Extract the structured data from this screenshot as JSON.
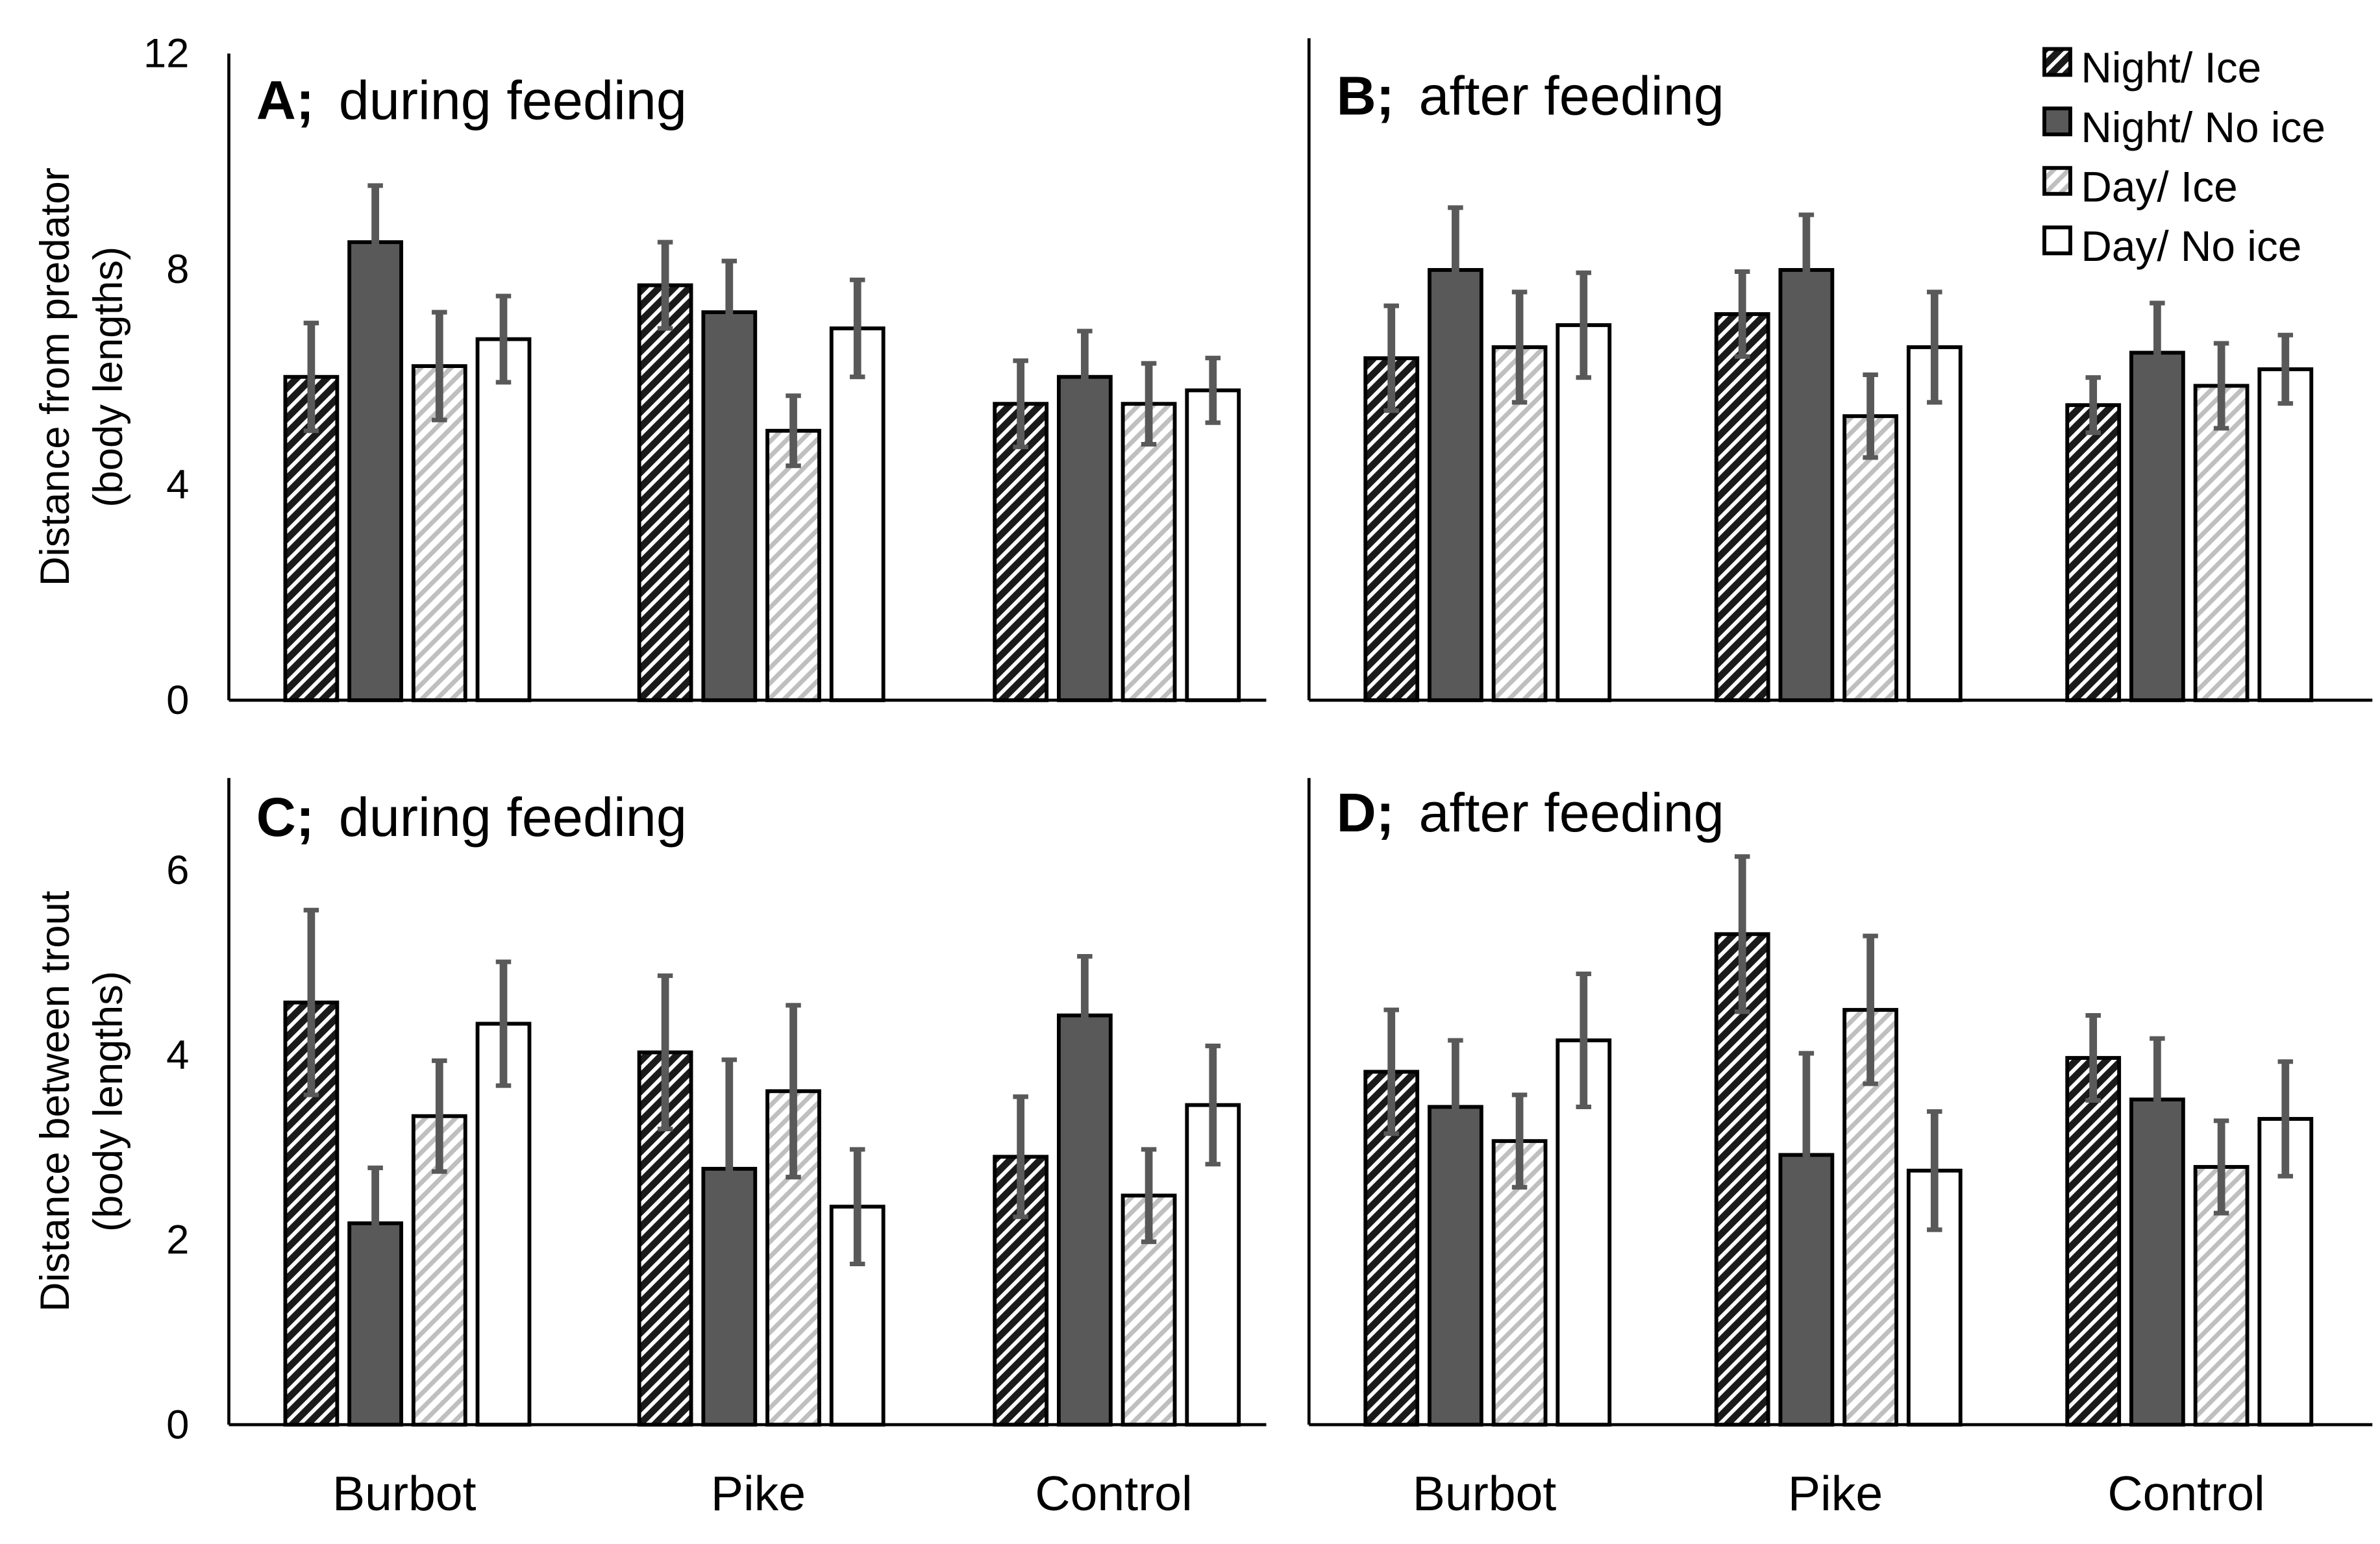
{
  "legend": [
    "Night/ Ice",
    "Night/ No ice",
    "Day/ Ice",
    "Day/ No ice"
  ],
  "colors": {
    "night_no_ice": "#595959",
    "night_ice_bg": "#3a3a3a",
    "day_ice_stripe": "#bfbfbf",
    "error_bar": "#595959",
    "outline": "#000000"
  },
  "chart_data": [
    {
      "type": "bar",
      "panel": "A",
      "title_bold": "A;",
      "title": "during feeding",
      "ylabel": [
        "Distance from predator",
        "(body lengths)"
      ],
      "ylim": [
        0,
        12
      ],
      "yticks": [
        0,
        4,
        8,
        12
      ],
      "categories": [
        "Burbot",
        "Pike",
        "Control"
      ],
      "show_xlabels": false,
      "series": [
        {
          "name": "Night/ Ice",
          "values": [
            6.0,
            7.7,
            5.5
          ],
          "errors": [
            1.0,
            0.8,
            0.8
          ]
        },
        {
          "name": "Night/ No ice",
          "values": [
            8.5,
            7.2,
            6.0
          ],
          "errors": [
            1.05,
            0.95,
            0.85
          ]
        },
        {
          "name": "Day/ Ice",
          "values": [
            6.2,
            5.0,
            5.5
          ],
          "errors": [
            1.0,
            0.65,
            0.75
          ]
        },
        {
          "name": "Day/ No ice",
          "values": [
            6.7,
            6.9,
            5.75
          ],
          "errors": [
            0.8,
            0.9,
            0.6
          ]
        }
      ]
    },
    {
      "type": "bar",
      "panel": "B",
      "title_bold": "B;",
      "title": "after feeding",
      "ylim": [
        0,
        12
      ],
      "yticks": [],
      "categories": [
        "Burbot",
        "Pike",
        "Control"
      ],
      "show_xlabels": false,
      "series": [
        {
          "name": "Night/ Ice",
          "values": [
            6.2,
            7.0,
            5.35
          ],
          "errors": [
            0.95,
            0.77,
            0.5
          ]
        },
        {
          "name": "Night/ No ice",
          "values": [
            7.8,
            7.8,
            6.3
          ],
          "errors": [
            1.13,
            1.0,
            0.9
          ]
        },
        {
          "name": "Day/ Ice",
          "values": [
            6.4,
            5.15,
            5.7
          ],
          "errors": [
            1.0,
            0.75,
            0.77
          ]
        },
        {
          "name": "Day/ No ice",
          "values": [
            6.8,
            6.4,
            6.0
          ],
          "errors": [
            0.95,
            1.0,
            0.62
          ]
        }
      ]
    },
    {
      "type": "bar",
      "panel": "C",
      "title_bold": "C;",
      "title": "during feeding",
      "ylabel": [
        "Distance between trout",
        "(body lengths)"
      ],
      "ylim": [
        0,
        7
      ],
      "yticks": [
        0,
        2,
        4,
        6
      ],
      "categories": [
        "Burbot",
        "Pike",
        "Control"
      ],
      "show_xlabels": true,
      "series": [
        {
          "name": "Night/ Ice",
          "values": [
            4.57,
            4.03,
            2.9
          ],
          "errors": [
            1.0,
            0.83,
            0.65
          ]
        },
        {
          "name": "Night/ No ice",
          "values": [
            2.18,
            2.77,
            4.43
          ],
          "errors": [
            0.6,
            1.18,
            0.64
          ]
        },
        {
          "name": "Day/ Ice",
          "values": [
            3.34,
            3.61,
            2.48
          ],
          "errors": [
            0.6,
            0.93,
            0.5
          ]
        },
        {
          "name": "Day/ No ice",
          "values": [
            4.34,
            2.36,
            3.46
          ],
          "errors": [
            0.67,
            0.62,
            0.64
          ]
        }
      ]
    },
    {
      "type": "bar",
      "panel": "D",
      "title_bold": "D;",
      "title": "after feeding",
      "ylim": [
        0,
        7
      ],
      "yticks": [],
      "categories": [
        "Burbot",
        "Pike",
        "Control"
      ],
      "show_xlabels": true,
      "series": [
        {
          "name": "Night/ Ice",
          "values": [
            3.82,
            5.31,
            3.97
          ],
          "errors": [
            0.67,
            0.84,
            0.46
          ]
        },
        {
          "name": "Night/ No ice",
          "values": [
            3.44,
            2.92,
            3.52
          ],
          "errors": [
            0.72,
            1.1,
            0.66
          ]
        },
        {
          "name": "Day/ Ice",
          "values": [
            3.07,
            4.49,
            2.79
          ],
          "errors": [
            0.5,
            0.8,
            0.5
          ]
        },
        {
          "name": "Day/ No ice",
          "values": [
            4.16,
            2.75,
            3.31
          ],
          "errors": [
            0.72,
            0.64,
            0.62
          ]
        }
      ]
    }
  ]
}
